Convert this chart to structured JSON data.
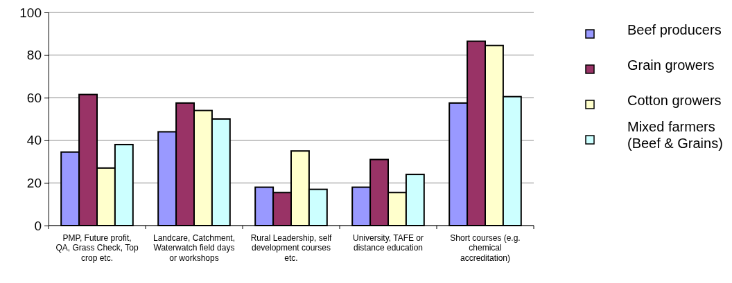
{
  "chart_data": {
    "type": "bar",
    "categories": [
      "PMP, Future profit, QA, Grass Check, Top crop etc.",
      "Landcare, Catchment, Waterwatch field days or workshops",
      "Rural Leadership, self development courses etc.",
      "University, TAFE or distance education",
      "Short courses (e.g. chemical accreditation)"
    ],
    "series": [
      {
        "name": "Beef producers",
        "color": "#9999ff",
        "values": [
          34.5,
          44,
          18,
          18,
          57.5
        ]
      },
      {
        "name": "Grain growers",
        "color": "#993366",
        "values": [
          61.5,
          57.5,
          15.5,
          31,
          86.5
        ]
      },
      {
        "name": "Cotton growers",
        "color": "#ffffcc",
        "values": [
          27,
          54,
          35,
          15.5,
          84.5
        ]
      },
      {
        "name": "Mixed farmers (Beef & Grains)",
        "color": "#ccffff",
        "values": [
          38,
          50,
          17,
          24,
          60.5
        ]
      }
    ],
    "ylim": [
      0,
      100
    ],
    "yticks": [
      0,
      20,
      40,
      60,
      80,
      100
    ],
    "grid": "y",
    "legend": "right"
  }
}
